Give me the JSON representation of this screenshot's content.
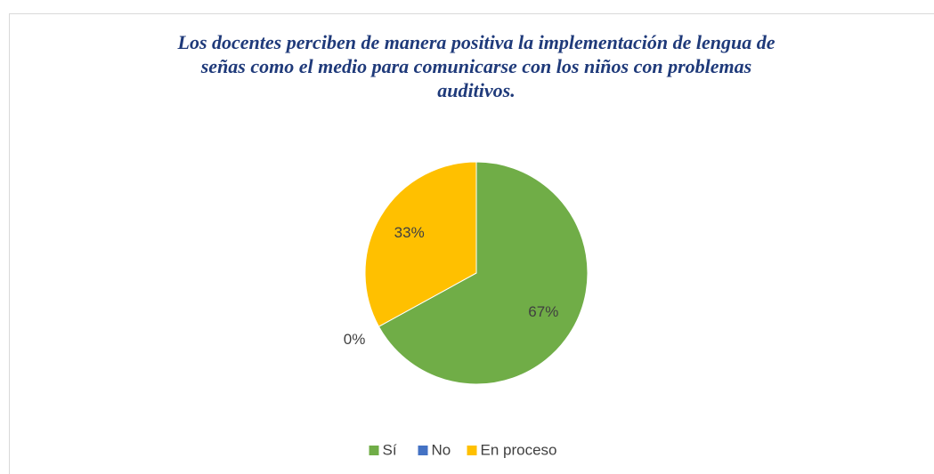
{
  "chart_data": {
    "type": "pie",
    "title": [
      "Los docentes perciben de manera positiva la implementación de lengua de",
      "señas como el medio para comunicarse con los niños con problemas",
      "auditivos."
    ],
    "categories": [
      "Sí",
      "No",
      "En proceso"
    ],
    "values": [
      67,
      0,
      33
    ],
    "value_labels": [
      "67%",
      "0%",
      "33%"
    ],
    "colors": [
      "#70ad47",
      "#4472c4",
      "#ffc000"
    ],
    "legend": "bottom"
  }
}
